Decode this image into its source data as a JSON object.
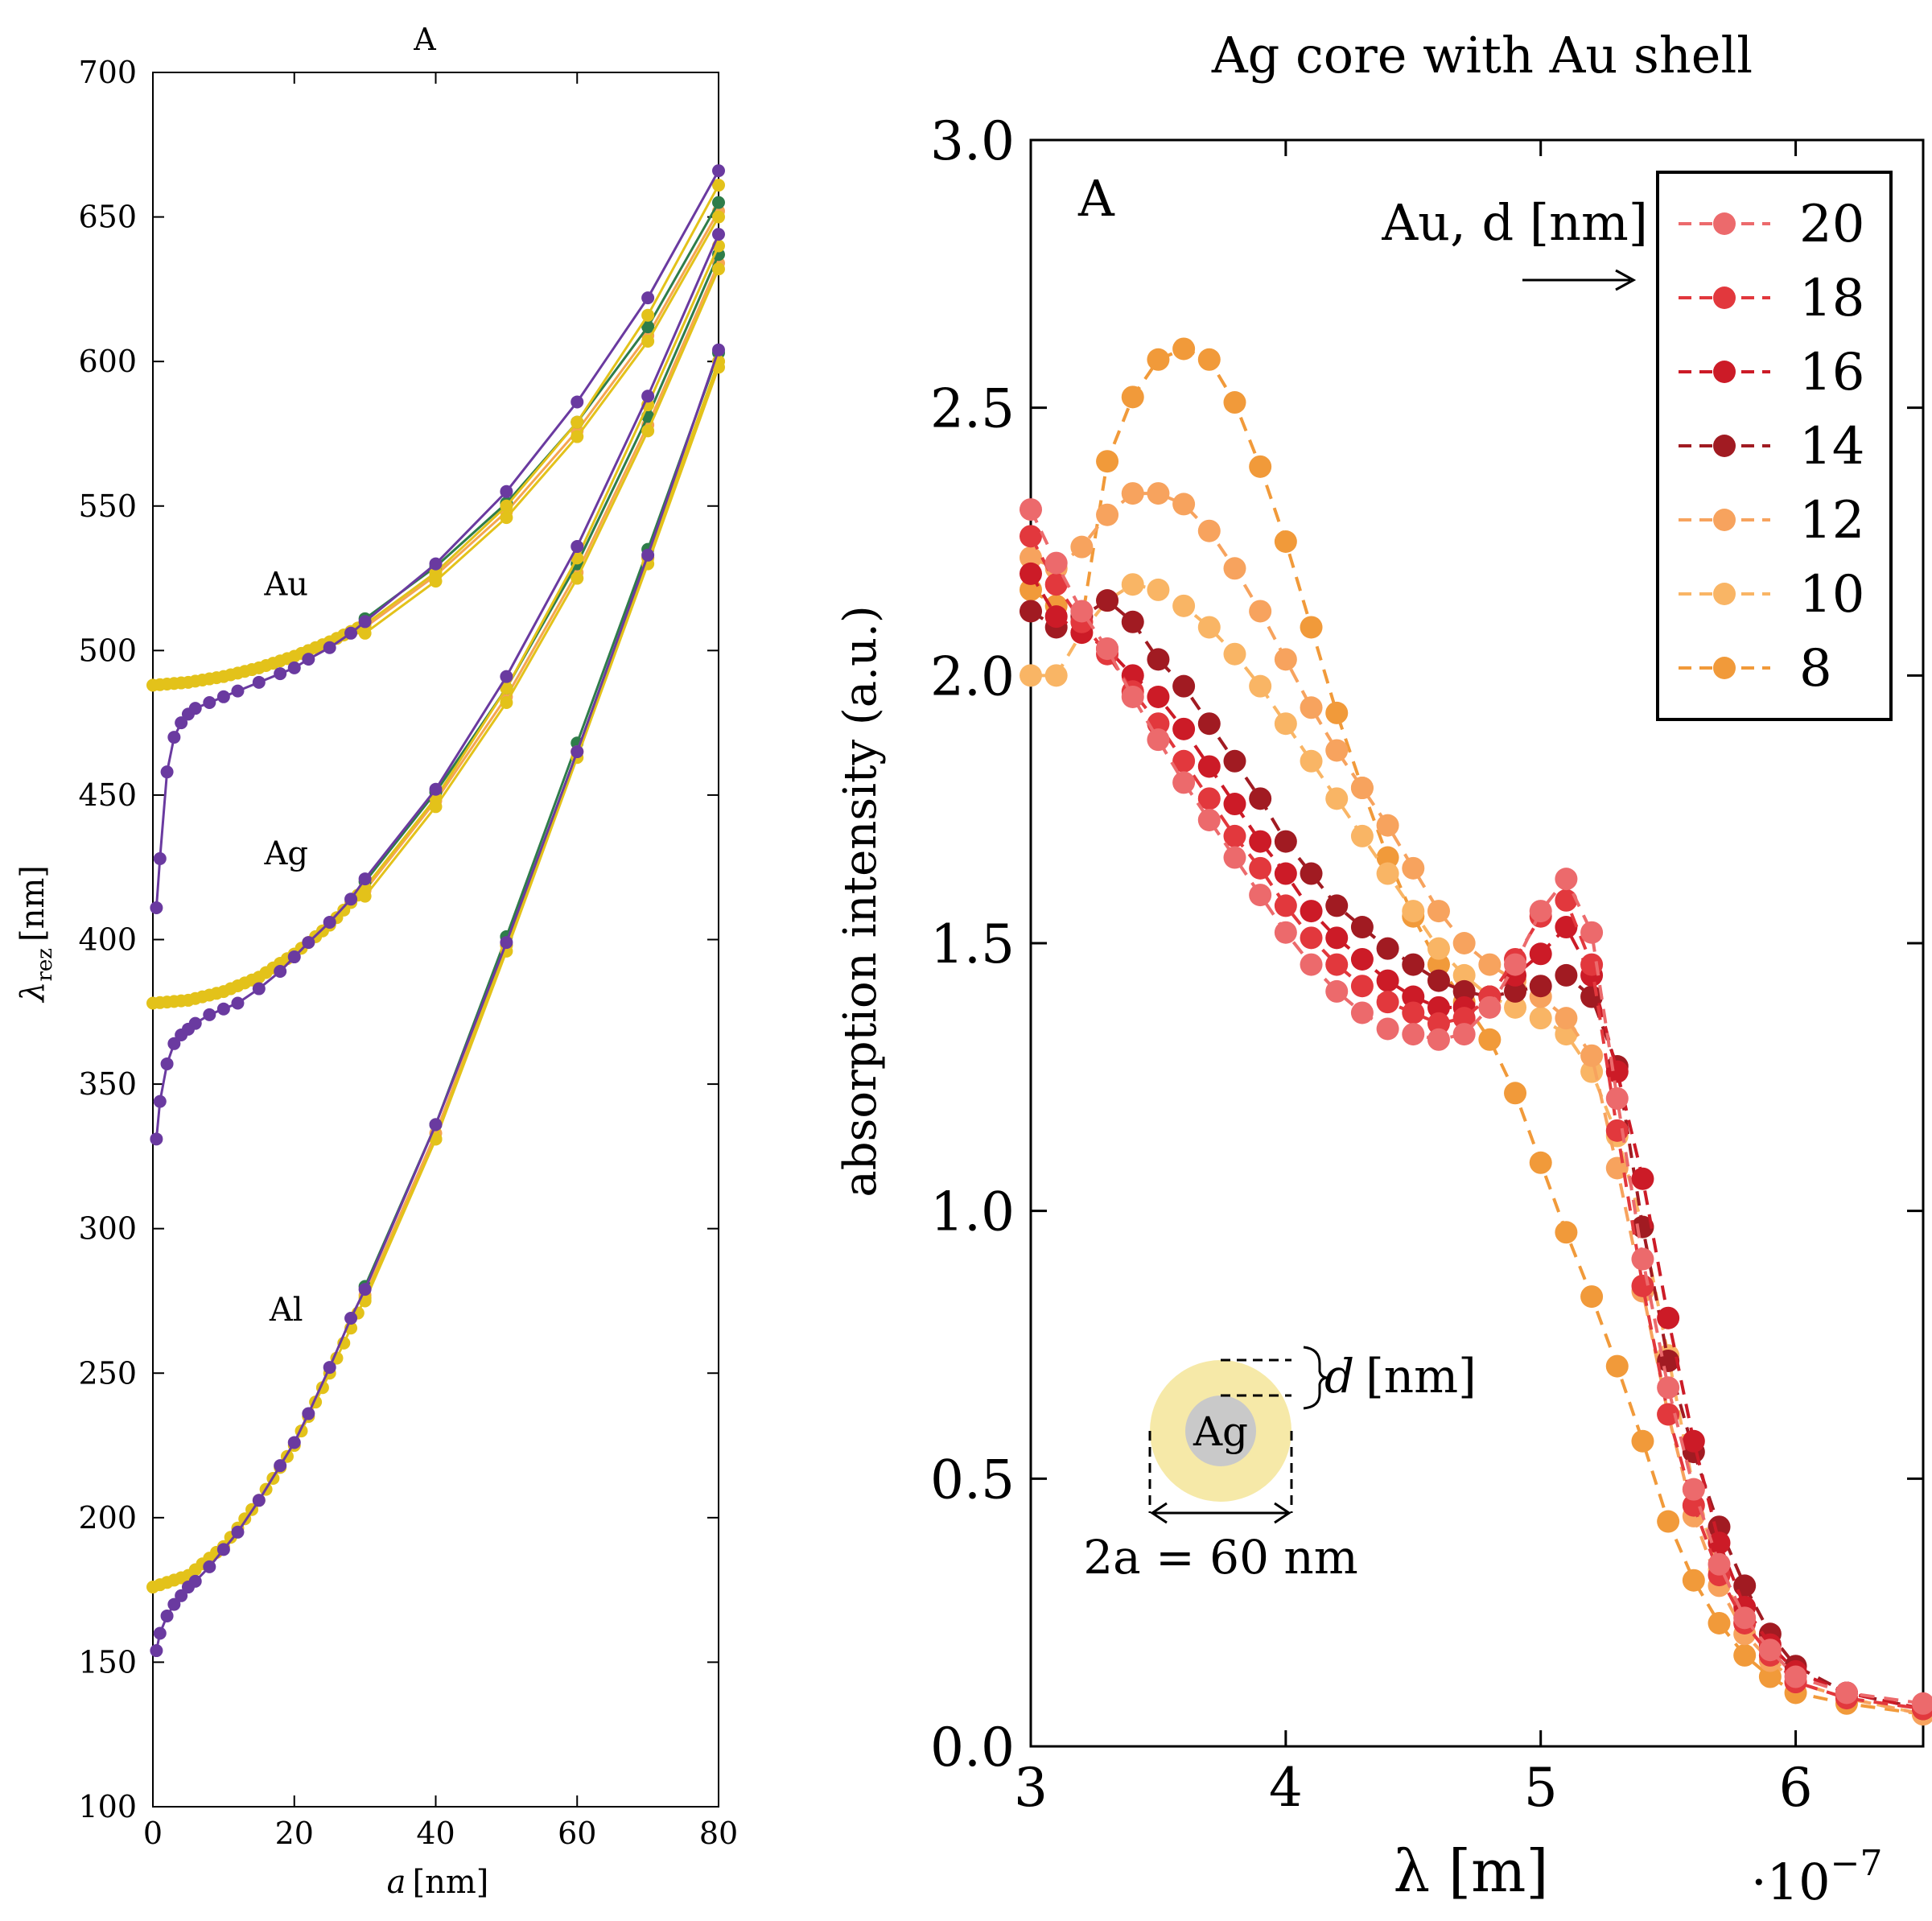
{
  "chart_data": [
    {
      "type": "line",
      "panel_label": "A",
      "title": "",
      "xlabel_italic": "a",
      "xlabel_unit": "[nm]",
      "ylabel_symbol": "λ",
      "ylabel_sub": "rez",
      "ylabel_unit": "[nm]",
      "xlim": [
        0,
        80
      ],
      "ylim": [
        100,
        700
      ],
      "xticks": [
        0,
        20,
        40,
        60,
        80
      ],
      "yticks": [
        100,
        150,
        200,
        250,
        300,
        350,
        400,
        450,
        500,
        550,
        600,
        650,
        700
      ],
      "colors": {
        "yellow": "#e3c21a",
        "orange": "#f5a552",
        "green": "#2e7d4a",
        "purple": "#6a3aa0"
      },
      "annotations": [
        {
          "text": "Au",
          "x": 20,
          "y": 523
        },
        {
          "text": "Ag",
          "x": 20,
          "y": 430
        },
        {
          "text": "Al",
          "x": 20,
          "y": 272
        }
      ],
      "groups": [
        {
          "name": "Au",
          "upper": {
            "x": [
              0,
              5,
              10,
              15,
              20,
              25,
              30,
              40,
              50,
              60,
              70,
              80
            ],
            "y": [
              488,
              489,
              491,
              494,
              498,
              503,
              509,
              527,
              550,
              579,
              616,
              661
            ]
          },
          "lower": {
            "x": [
              0.5,
              1,
              2,
              3,
              4,
              5,
              6,
              8,
              10,
              12,
              15,
              18,
              20,
              22,
              25,
              28,
              30,
              40,
              50,
              60,
              70,
              80
            ],
            "y": [
              411,
              428,
              458,
              470,
              475,
              478,
              480,
              482,
              484,
              486,
              489,
              492,
              494,
              497,
              501,
              506,
              510,
              530,
              555,
              586,
              622,
              666
            ]
          },
          "mid": {
            "x": [
              30,
              40,
              50,
              60,
              70,
              80
            ],
            "y": [
              508,
              526,
              548,
              576,
              609,
              652
            ]
          }
        },
        {
          "name": "Ag",
          "upper": {
            "x": [
              0,
              5,
              10,
              15,
              20,
              25,
              30,
              40,
              50,
              60,
              70,
              80
            ],
            "y": [
              378,
              379,
              382,
              387,
              395,
              405,
              418,
              449,
              487,
              532,
              585,
              640
            ]
          },
          "lower": {
            "x": [
              0.5,
              1,
              2,
              3,
              4,
              5,
              6,
              8,
              10,
              12,
              15,
              18,
              20,
              22,
              25,
              28,
              30,
              40,
              50,
              60,
              70,
              80
            ],
            "y": [
              331,
              344,
              357,
              364,
              367,
              369,
              371,
              374,
              376,
              378,
              383,
              389,
              394,
              399,
              406,
              414,
              421,
              452,
              491,
              536,
              588,
              644
            ]
          },
          "mid": {
            "x": [
              30,
              40,
              50,
              60,
              70,
              80
            ],
            "y": [
              417,
              448,
              484,
              527,
              578,
              634
            ]
          }
        },
        {
          "name": "Al",
          "upper": {
            "x": [
              0,
              5,
              10,
              15,
              20,
              25,
              30,
              40,
              50,
              60,
              70,
              80
            ],
            "y": [
              176,
              180,
              190,
              206,
              225,
              250,
              276,
              331,
              398,
              465,
              532,
              600
            ]
          },
          "lower": {
            "x": [
              0.5,
              1,
              2,
              3,
              4,
              5,
              6,
              8,
              10,
              12,
              15,
              18,
              20,
              22,
              25,
              28,
              30,
              40,
              50,
              60,
              70,
              80
            ],
            "y": [
              154,
              160,
              166,
              170,
              173,
              176,
              178,
              183,
              189,
              195,
              206,
              218,
              226,
              236,
              252,
              269,
              279,
              336,
              399,
              465,
              533,
              604
            ]
          },
          "mid": {
            "x": [
              30,
              40,
              50,
              60,
              70,
              80
            ],
            "y": [
              277,
              333,
              398,
              465,
              532,
              600
            ]
          }
        }
      ]
    },
    {
      "type": "line",
      "panel_label": "A",
      "title": "Ag core with Au shell",
      "xlabel": "λ [m]",
      "x_multiplier": "·10",
      "x_multiplier_exp": "−7",
      "ylabel": "absorption intensity (a.u.)",
      "xlim": [
        3,
        6.5
      ],
      "ylim": [
        0,
        3
      ],
      "xticks": [
        "3",
        "4",
        "5",
        "6"
      ],
      "yticks": [
        "0.0",
        "0.5",
        "1.0",
        "1.5",
        "2.0",
        "2.5",
        "3.0"
      ],
      "legend_title": "Au, d [nm]",
      "legend_position": "top-right",
      "series": [
        {
          "name": "20",
          "color": "#ec6a6c",
          "x": [
            3.0,
            3.1,
            3.2,
            3.3,
            3.4,
            3.5,
            3.6,
            3.7,
            3.8,
            3.9,
            4.0,
            4.1,
            4.2,
            4.3,
            4.4,
            4.5,
            4.6,
            4.7,
            4.8,
            4.9,
            5.0,
            5.1,
            5.2,
            5.3,
            5.4,
            5.5,
            5.6,
            5.7,
            5.8,
            5.9,
            6.0,
            6.2,
            6.5
          ],
          "y": [
            2.31,
            2.21,
            2.12,
            2.05,
            1.96,
            1.88,
            1.8,
            1.73,
            1.66,
            1.59,
            1.52,
            1.46,
            1.41,
            1.37,
            1.34,
            1.33,
            1.32,
            1.33,
            1.38,
            1.46,
            1.56,
            1.62,
            1.52,
            1.21,
            0.91,
            0.67,
            0.48,
            0.34,
            0.24,
            0.18,
            0.13,
            0.1,
            0.08
          ]
        },
        {
          "name": "18",
          "color": "#e2383d",
          "x": [
            3.0,
            3.1,
            3.2,
            3.3,
            3.4,
            3.5,
            3.6,
            3.7,
            3.8,
            3.9,
            4.0,
            4.1,
            4.2,
            4.3,
            4.4,
            4.5,
            4.6,
            4.7,
            4.8,
            4.9,
            5.0,
            5.1,
            5.2,
            5.3,
            5.4,
            5.5,
            5.6,
            5.7,
            5.8,
            5.9,
            6.0,
            6.2,
            6.5
          ],
          "y": [
            2.26,
            2.17,
            2.1,
            2.04,
            1.97,
            1.91,
            1.84,
            1.77,
            1.7,
            1.64,
            1.57,
            1.51,
            1.46,
            1.42,
            1.39,
            1.37,
            1.35,
            1.36,
            1.4,
            1.47,
            1.55,
            1.58,
            1.46,
            1.15,
            0.86,
            0.62,
            0.45,
            0.32,
            0.23,
            0.17,
            0.12,
            0.09,
            0.07
          ]
        },
        {
          "name": "16",
          "color": "#cc1b27",
          "x": [
            3.0,
            3.1,
            3.2,
            3.3,
            3.4,
            3.5,
            3.6,
            3.7,
            3.8,
            3.9,
            4.0,
            4.1,
            4.2,
            4.3,
            4.4,
            4.5,
            4.6,
            4.7,
            4.8,
            4.9,
            5.0,
            5.1,
            5.2,
            5.3,
            5.4,
            5.5,
            5.6,
            5.7,
            5.8,
            5.9,
            6.0,
            6.2,
            6.5
          ],
          "y": [
            2.19,
            2.11,
            2.08,
            2.05,
            2.0,
            1.96,
            1.9,
            1.83,
            1.76,
            1.69,
            1.63,
            1.56,
            1.51,
            1.47,
            1.43,
            1.4,
            1.38,
            1.38,
            1.4,
            1.44,
            1.48,
            1.53,
            1.44,
            1.26,
            1.06,
            0.8,
            0.57,
            0.38,
            0.26,
            0.19,
            0.14,
            0.1,
            0.07
          ]
        },
        {
          "name": "14",
          "color": "#a11b22",
          "x": [
            3.0,
            3.1,
            3.2,
            3.3,
            3.4,
            3.5,
            3.6,
            3.7,
            3.8,
            3.9,
            4.0,
            4.1,
            4.2,
            4.3,
            4.4,
            4.5,
            4.6,
            4.7,
            4.8,
            4.9,
            5.0,
            5.1,
            5.2,
            5.3,
            5.4,
            5.5,
            5.6,
            5.7,
            5.8,
            5.9,
            6.0,
            6.2,
            6.5
          ],
          "y": [
            2.12,
            2.09,
            2.11,
            2.14,
            2.1,
            2.03,
            1.98,
            1.91,
            1.84,
            1.77,
            1.69,
            1.63,
            1.57,
            1.53,
            1.49,
            1.46,
            1.43,
            1.41,
            1.4,
            1.41,
            1.42,
            1.44,
            1.4,
            1.27,
            0.97,
            0.72,
            0.55,
            0.41,
            0.3,
            0.21,
            0.15,
            0.1,
            0.07
          ]
        },
        {
          "name": "12",
          "color": "#f7a35e",
          "x": [
            3.0,
            3.1,
            3.2,
            3.3,
            3.4,
            3.5,
            3.6,
            3.7,
            3.8,
            3.9,
            4.0,
            4.1,
            4.2,
            4.3,
            4.4,
            4.5,
            4.6,
            4.7,
            4.8,
            4.9,
            5.0,
            5.1,
            5.2,
            5.3,
            5.4,
            5.5,
            5.6,
            5.7,
            5.8,
            5.9,
            6.0,
            6.2,
            6.5
          ],
          "y": [
            2.22,
            2.2,
            2.24,
            2.3,
            2.34,
            2.34,
            2.32,
            2.27,
            2.2,
            2.12,
            2.03,
            1.94,
            1.86,
            1.79,
            1.72,
            1.64,
            1.56,
            1.5,
            1.46,
            1.43,
            1.4,
            1.36,
            1.29,
            1.08,
            0.85,
            0.62,
            0.43,
            0.3,
            0.21,
            0.16,
            0.12,
            0.09,
            0.06
          ]
        },
        {
          "name": "10",
          "color": "#f9b565",
          "x": [
            3.0,
            3.1,
            3.2,
            3.3,
            3.4,
            3.5,
            3.6,
            3.7,
            3.8,
            3.9,
            4.0,
            4.1,
            4.2,
            4.3,
            4.4,
            4.5,
            4.6,
            4.7,
            4.8,
            4.9,
            5.0,
            5.1,
            5.2,
            5.3,
            5.4,
            5.5,
            5.6,
            5.7,
            5.8,
            5.9,
            6.0,
            6.2,
            6.5
          ],
          "y": [
            2.0,
            2.0,
            2.08,
            2.14,
            2.17,
            2.16,
            2.13,
            2.09,
            2.04,
            1.98,
            1.91,
            1.84,
            1.77,
            1.7,
            1.63,
            1.56,
            1.49,
            1.44,
            1.4,
            1.38,
            1.36,
            1.33,
            1.26,
            1.14,
            0.97,
            0.73,
            0.48,
            0.33,
            0.23,
            0.17,
            0.12,
            0.09,
            0.06
          ]
        },
        {
          "name": "8",
          "color": "#f19a3a",
          "x": [
            3.0,
            3.1,
            3.2,
            3.3,
            3.4,
            3.5,
            3.6,
            3.7,
            3.8,
            3.9,
            4.0,
            4.1,
            4.2,
            4.3,
            4.4,
            4.5,
            4.6,
            4.7,
            4.8,
            4.9,
            5.0,
            5.1,
            5.2,
            5.3,
            5.4,
            5.5,
            5.6,
            5.7,
            5.8,
            5.9,
            6.0,
            6.2,
            6.5
          ],
          "y": [
            2.16,
            2.13,
            2.1,
            2.4,
            2.52,
            2.59,
            2.61,
            2.59,
            2.51,
            2.39,
            2.25,
            2.09,
            1.93,
            1.79,
            1.66,
            1.55,
            1.46,
            1.39,
            1.32,
            1.22,
            1.09,
            0.96,
            0.84,
            0.71,
            0.57,
            0.42,
            0.31,
            0.23,
            0.17,
            0.13,
            0.1,
            0.08,
            0.06
          ]
        }
      ],
      "inset": {
        "core_label": "Ag",
        "thickness_label_italic": "d",
        "thickness_label_unit": "[nm]",
        "diameter_label": "2a = 60 nm"
      }
    }
  ]
}
